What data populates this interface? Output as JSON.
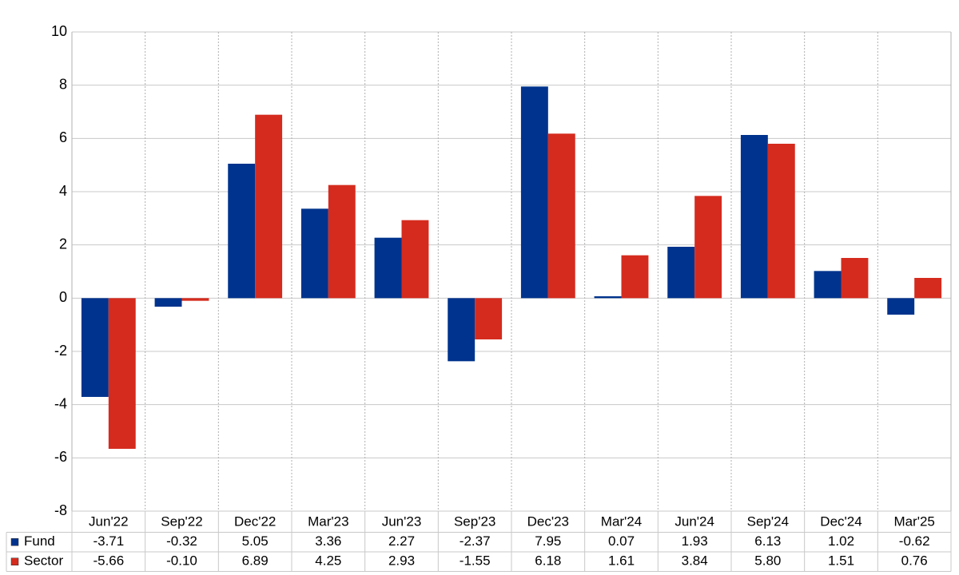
{
  "chart_data": {
    "type": "bar",
    "categories": [
      "Jun'22",
      "Sep'22",
      "Dec'22",
      "Mar'23",
      "Jun'23",
      "Sep'23",
      "Dec'23",
      "Mar'24",
      "Jun'24",
      "Sep'24",
      "Dec'24",
      "Mar'25"
    ],
    "series": [
      {
        "name": "Fund",
        "color": "#00338d",
        "values": [
          -3.71,
          -0.32,
          5.05,
          3.36,
          2.27,
          -2.37,
          7.95,
          0.07,
          1.93,
          6.13,
          1.02,
          -0.62
        ],
        "value_labels": [
          "-3.71",
          "-0.32",
          "5.05",
          "3.36",
          "2.27",
          "-2.37",
          "7.95",
          "0.07",
          "1.93",
          "6.13",
          "1.02",
          "-0.62"
        ]
      },
      {
        "name": "Sector",
        "color": "#d52b1e",
        "values": [
          -5.66,
          -0.1,
          6.89,
          4.25,
          2.93,
          -1.55,
          6.18,
          1.61,
          3.84,
          5.8,
          1.51,
          0.76
        ],
        "value_labels": [
          "-5.66",
          "-0.10",
          "6.89",
          "4.25",
          "2.93",
          "-1.55",
          "6.18",
          "1.61",
          "3.84",
          "5.80",
          "1.51",
          "0.76"
        ]
      }
    ],
    "ylim": [
      -8,
      10
    ],
    "yticks": [
      -8,
      -6,
      -4,
      -2,
      0,
      2,
      4,
      6,
      8,
      10
    ],
    "grid": true,
    "negative_label_color": "#e00000"
  }
}
